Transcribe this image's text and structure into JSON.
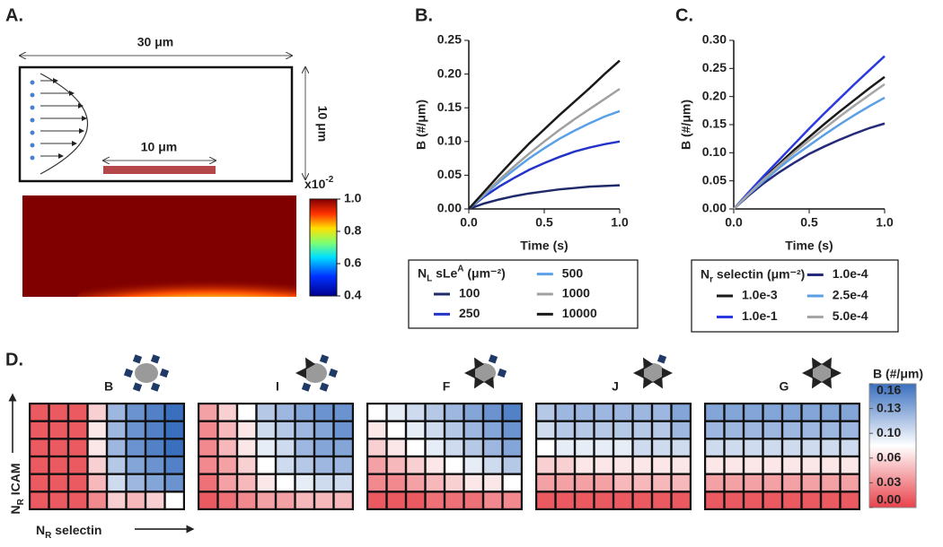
{
  "panel_labels": [
    "A.",
    "B.",
    "C.",
    "D."
  ],
  "diagram": {
    "width_label": "30 μm",
    "height_label": "10 μm",
    "patch_label": "10 μm"
  },
  "chart_data": [
    {
      "type": "field",
      "colorbar_title": {
        "base": "x10",
        "sup": "-2"
      },
      "clim": [
        0.4,
        1.0
      ],
      "cticks": [
        0.4,
        0.6,
        0.8,
        {
          "value": 1.0,
          "label": "1.0"
        }
      ]
    },
    {
      "type": "line",
      "y_label": "B (#/μm)",
      "x_label": "Time (s)",
      "x": [
        0,
        0.1,
        0.2,
        0.3,
        0.4,
        0.5,
        0.6,
        0.7,
        0.8,
        0.9,
        1.0
      ],
      "xlim": [
        0,
        1.0
      ],
      "xticks": [
        {
          "value": 0,
          "label": "0.0"
        },
        0.5,
        {
          "value": 1.0,
          "label": "1.0"
        }
      ],
      "ylim": [
        0,
        0.25
      ],
      "yticks": [
        {
          "value": 0,
          "label": "0.00"
        },
        0.05,
        {
          "value": 0.1,
          "label": "0.10"
        },
        0.15,
        {
          "value": 0.2,
          "label": "0.20"
        },
        0.25
      ],
      "legend_title": {
        "base": "N",
        "sub": "L",
        "mid": " sLe",
        "sup": "A",
        "tail": " (μm⁻²)"
      },
      "series": [
        {
          "name": "100",
          "color": "#1f2a6b",
          "values": [
            0,
            0.008,
            0.014,
            0.019,
            0.023,
            0.026,
            0.029,
            0.031,
            0.033,
            0.034,
            0.035
          ]
        },
        {
          "name": "250",
          "color": "#2433c8",
          "values": [
            0,
            0.018,
            0.033,
            0.046,
            0.058,
            0.068,
            0.077,
            0.085,
            0.091,
            0.096,
            0.1
          ]
        },
        {
          "name": "500",
          "color": "#5aa0e8",
          "values": [
            0,
            0.02,
            0.04,
            0.058,
            0.075,
            0.09,
            0.104,
            0.116,
            0.127,
            0.137,
            0.145
          ]
        },
        {
          "name": "1000",
          "color": "#a0a0a0",
          "values": [
            0,
            0.022,
            0.043,
            0.063,
            0.082,
            0.1,
            0.117,
            0.133,
            0.148,
            0.163,
            0.178
          ]
        },
        {
          "name": "10000",
          "color": "#1a1a1a",
          "values": [
            0,
            0.025,
            0.05,
            0.074,
            0.097,
            0.118,
            0.139,
            0.159,
            0.179,
            0.2,
            0.22
          ]
        }
      ]
    },
    {
      "type": "line",
      "y_label": "B (#/μm)",
      "x_label": "Time (s)",
      "x": [
        0,
        0.1,
        0.2,
        0.3,
        0.4,
        0.5,
        0.6,
        0.7,
        0.8,
        0.9,
        1.0
      ],
      "xlim": [
        0,
        1.0
      ],
      "xticks": [
        {
          "value": 0,
          "label": "0.0"
        },
        0.5,
        {
          "value": 1.0,
          "label": "1.0"
        }
      ],
      "ylim": [
        0,
        0.3
      ],
      "yticks": [
        {
          "value": 0,
          "label": "0.00"
        },
        0.05,
        {
          "value": 0.1,
          "label": "0.10"
        },
        0.15,
        {
          "value": 0.2,
          "label": "0.20"
        },
        0.25,
        {
          "value": 0.3,
          "label": "0.30"
        }
      ],
      "legend_title": {
        "base": "N",
        "sub": "r",
        "mid": " selectin",
        "sup": "",
        "tail": " (μm⁻²)"
      },
      "series": [
        {
          "name": "1.0e-3",
          "color": "#1a1a1a",
          "values": [
            0,
            0.028,
            0.055,
            0.08,
            0.105,
            0.128,
            0.151,
            0.173,
            0.194,
            0.215,
            0.235
          ]
        },
        {
          "name": "1.0e-1",
          "color": "#2a3ae0",
          "values": [
            0,
            0.03,
            0.059,
            0.087,
            0.115,
            0.143,
            0.17,
            0.196,
            0.222,
            0.247,
            0.272
          ]
        },
        {
          "name": "1.0e-4",
          "color": "#252a7a",
          "values": [
            0,
            0.024,
            0.046,
            0.065,
            0.082,
            0.098,
            0.111,
            0.123,
            0.134,
            0.144,
            0.152
          ]
        },
        {
          "name": "2.5e-4",
          "color": "#5a9fe6",
          "values": [
            0,
            0.026,
            0.05,
            0.073,
            0.094,
            0.113,
            0.132,
            0.15,
            0.167,
            0.183,
            0.198
          ]
        },
        {
          "name": "5.0e-4",
          "color": "#a5a5a5",
          "values": [
            0,
            0.027,
            0.053,
            0.077,
            0.1,
            0.122,
            0.143,
            0.164,
            0.184,
            0.203,
            0.222
          ]
        }
      ]
    },
    {
      "type": "heatmap",
      "colorbar_title": "B (#/μm)",
      "clim": [
        0,
        0.16
      ],
      "cticks": [
        {
          "value": 0.16,
          "label": "0.16"
        },
        {
          "value": 0.128,
          "label": "0.13"
        },
        {
          "value": 0.096,
          "label": "0.10"
        },
        {
          "value": 0.064,
          "label": "0.06"
        },
        {
          "value": 0.032,
          "label": "0.03"
        },
        {
          "value": 0,
          "label": "0.00"
        }
      ],
      "x_label": {
        "base": "N",
        "sub": "R",
        "tail": " selectin"
      },
      "y_label": {
        "base": "N",
        "sub": "R",
        "tail": " ICAM"
      },
      "panels": [
        {
          "label": "B",
          "values": [
            [
              0.01,
              0.01,
              0.01,
              0.06,
              0.12,
              0.14,
              0.15,
              0.16
            ],
            [
              0.01,
              0.01,
              0.01,
              0.07,
              0.12,
              0.14,
              0.15,
              0.16
            ],
            [
              0.01,
              0.01,
              0.01,
              0.07,
              0.12,
              0.14,
              0.15,
              0.16
            ],
            [
              0.01,
              0.01,
              0.01,
              0.06,
              0.11,
              0.13,
              0.14,
              0.15
            ],
            [
              0.01,
              0.01,
              0.01,
              0.05,
              0.1,
              0.12,
              0.13,
              0.14
            ],
            [
              0.01,
              0.01,
              0.01,
              0.03,
              0.06,
              0.05,
              0.06,
              0.08
            ]
          ]
        },
        {
          "label": "I",
          "values": [
            [
              0.04,
              0.06,
              0.08,
              0.11,
              0.12,
              0.13,
              0.14,
              0.14
            ],
            [
              0.03,
              0.05,
              0.07,
              0.1,
              0.11,
              0.12,
              0.13,
              0.14
            ],
            [
              0.03,
              0.05,
              0.07,
              0.09,
              0.1,
              0.12,
              0.13,
              0.13
            ],
            [
              0.03,
              0.04,
              0.06,
              0.08,
              0.1,
              0.11,
              0.12,
              0.12
            ],
            [
              0.02,
              0.04,
              0.05,
              0.07,
              0.08,
              0.09,
              0.1,
              0.1
            ],
            [
              0.01,
              0.02,
              0.03,
              0.04,
              0.04,
              0.05,
              0.05,
              0.05
            ]
          ]
        },
        {
          "label": "F",
          "values": [
            [
              0.08,
              0.09,
              0.1,
              0.11,
              0.12,
              0.13,
              0.14,
              0.15
            ],
            [
              0.07,
              0.08,
              0.09,
              0.1,
              0.11,
              0.12,
              0.13,
              0.14
            ],
            [
              0.06,
              0.07,
              0.08,
              0.09,
              0.1,
              0.11,
              0.12,
              0.13
            ],
            [
              0.04,
              0.05,
              0.06,
              0.07,
              0.08,
              0.09,
              0.1,
              0.11
            ],
            [
              0.03,
              0.03,
              0.04,
              0.05,
              0.06,
              0.07,
              0.07,
              0.08
            ],
            [
              0.01,
              0.01,
              0.01,
              0.02,
              0.02,
              0.02,
              0.03,
              0.03
            ]
          ]
        },
        {
          "label": "J",
          "values": [
            [
              0.11,
              0.12,
              0.12,
              0.12,
              0.12,
              0.12,
              0.12,
              0.13
            ],
            [
              0.1,
              0.11,
              0.11,
              0.11,
              0.11,
              0.11,
              0.11,
              0.12
            ],
            [
              0.08,
              0.09,
              0.09,
              0.09,
              0.09,
              0.1,
              0.1,
              0.1
            ],
            [
              0.06,
              0.06,
              0.07,
              0.07,
              0.07,
              0.07,
              0.07,
              0.07
            ],
            [
              0.04,
              0.04,
              0.04,
              0.04,
              0.05,
              0.05,
              0.05,
              0.05
            ],
            [
              0.01,
              0.01,
              0.01,
              0.01,
              0.01,
              0.01,
              0.01,
              0.01
            ]
          ]
        },
        {
          "label": "G",
          "values": [
            [
              0.13,
              0.13,
              0.13,
              0.13,
              0.13,
              0.13,
              0.13,
              0.13
            ],
            [
              0.12,
              0.12,
              0.12,
              0.12,
              0.12,
              0.12,
              0.12,
              0.12
            ],
            [
              0.1,
              0.1,
              0.1,
              0.1,
              0.1,
              0.1,
              0.1,
              0.1
            ],
            [
              0.07,
              0.07,
              0.07,
              0.07,
              0.07,
              0.07,
              0.07,
              0.07
            ],
            [
              0.04,
              0.04,
              0.04,
              0.04,
              0.04,
              0.04,
              0.04,
              0.04
            ],
            [
              0.01,
              0.01,
              0.01,
              0.01,
              0.01,
              0.01,
              0.01,
              0.01
            ]
          ]
        }
      ]
    }
  ]
}
